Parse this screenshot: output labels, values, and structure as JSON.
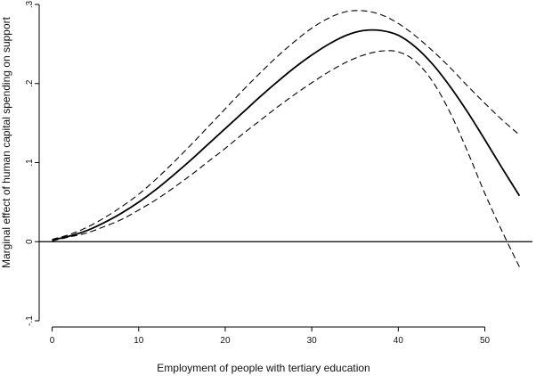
{
  "chart_data": {
    "type": "line",
    "title": "",
    "xlabel": "Employment of people with tertiary education",
    "ylabel": "Marginal effect of human capital spending on support",
    "xlim": [
      -1.5,
      55.5
    ],
    "ylim": [
      -0.1,
      0.3
    ],
    "x_ticks": [
      0,
      10,
      20,
      30,
      40,
      50
    ],
    "x_tick_labels": [
      "0",
      "10",
      "20",
      "30",
      "40",
      "50"
    ],
    "y_ticks": [
      -0.1,
      0,
      0.1,
      0.2,
      0.3
    ],
    "y_tick_labels": [
      "-.1",
      "0",
      ".1",
      ".2",
      ".3"
    ],
    "reference_line_y": 0,
    "grid": false,
    "legend": "none",
    "series": [
      {
        "role": "estimate",
        "color": "#000000",
        "x": [
          0,
          2,
          4,
          6,
          8,
          10,
          12,
          14,
          16,
          18,
          20,
          22,
          24,
          26,
          28,
          30,
          32,
          34,
          36,
          38,
          40,
          42,
          44,
          46,
          48,
          50,
          52,
          54
        ],
        "y": [
          0.002,
          0.007,
          0.014,
          0.024,
          0.036,
          0.05,
          0.066,
          0.084,
          0.103,
          0.123,
          0.143,
          0.163,
          0.183,
          0.202,
          0.22,
          0.236,
          0.25,
          0.261,
          0.267,
          0.267,
          0.261,
          0.246,
          0.224,
          0.196,
          0.164,
          0.129,
          0.093,
          0.058
        ]
      },
      {
        "role": "upper-ci",
        "color": "#000000",
        "x": [
          0,
          2,
          4,
          6,
          8,
          10,
          12,
          14,
          16,
          18,
          20,
          22,
          24,
          26,
          28,
          30,
          32,
          34,
          36,
          38,
          40,
          42,
          44,
          46,
          48,
          50,
          52,
          54
        ],
        "y": [
          0.003,
          0.009,
          0.018,
          0.03,
          0.044,
          0.06,
          0.079,
          0.1,
          0.122,
          0.145,
          0.168,
          0.191,
          0.213,
          0.234,
          0.253,
          0.27,
          0.283,
          0.291,
          0.292,
          0.287,
          0.276,
          0.26,
          0.241,
          0.22,
          0.197,
          0.175,
          0.154,
          0.135
        ]
      },
      {
        "role": "lower-ci",
        "color": "#000000",
        "x": [
          0,
          2,
          4,
          6,
          8,
          10,
          12,
          14,
          16,
          18,
          20,
          22,
          24,
          26,
          28,
          30,
          32,
          34,
          36,
          38,
          40,
          42,
          44,
          46,
          48,
          50,
          52,
          54
        ],
        "y": [
          0.001,
          0.006,
          0.011,
          0.019,
          0.028,
          0.04,
          0.053,
          0.068,
          0.084,
          0.101,
          0.118,
          0.136,
          0.153,
          0.17,
          0.186,
          0.201,
          0.215,
          0.227,
          0.236,
          0.241,
          0.24,
          0.228,
          0.202,
          0.163,
          0.114,
          0.061,
          0.013,
          -0.032
        ]
      }
    ]
  }
}
